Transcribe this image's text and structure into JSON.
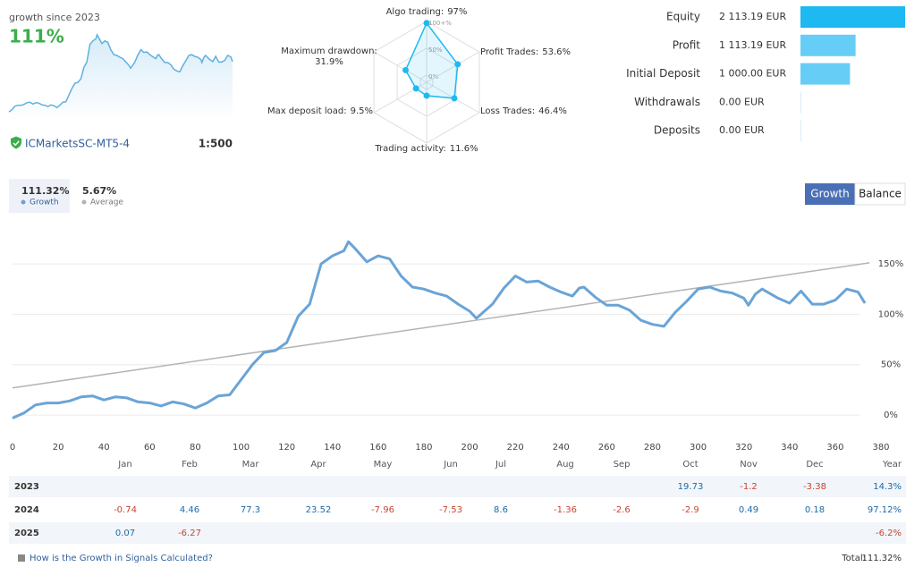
{
  "header": {
    "title": "growth since 2023",
    "growth": "111%",
    "account": "ICMarketsSC-MT5-4",
    "leverage": "1:500"
  },
  "radar": {
    "ticks": [
      {
        "value": 0,
        "label": "0%"
      },
      {
        "value": 50,
        "label": "50%"
      },
      {
        "value": 100,
        "label": "100+%"
      }
    ],
    "axes": [
      {
        "name": "Algo trading:",
        "value": 97,
        "value_label": "97%"
      },
      {
        "name": "Profit Trades:",
        "value": 53.6,
        "value_label": "53.6%"
      },
      {
        "name": "Loss Trades:",
        "value": 46.4,
        "value_label": "46.4%"
      },
      {
        "name": "Trading activity:",
        "value": 11.6,
        "value_label": "11.6%"
      },
      {
        "name": "Max deposit load:",
        "value": 9.5,
        "value_label": "9.5%"
      },
      {
        "name": "Maximum drawdown:",
        "value": 31.9,
        "value_label": "31.9%"
      }
    ]
  },
  "stats": {
    "items": [
      {
        "label": "Equity",
        "value": 2113.19,
        "value_label": "2 113.19 EUR",
        "color": "#1db9f0"
      },
      {
        "label": "Profit",
        "value": 1113.19,
        "value_label": "1 113.19 EUR",
        "color": "#66cdf6"
      },
      {
        "label": "Initial Deposit",
        "value": 1000,
        "value_label": "1 000.00 EUR",
        "color": "#66cdf6"
      },
      {
        "label": "Withdrawals",
        "value": 0,
        "value_label": "0.00 EUR",
        "color": "#66cdf6"
      },
      {
        "label": "Deposits",
        "value": 0,
        "value_label": "0.00 EUR",
        "color": "#66cdf6"
      }
    ]
  },
  "summary": {
    "growth_value": "111.32%",
    "average_value": "5.67%"
  },
  "tabs": [
    "Growth",
    "Balance"
  ],
  "chart_data": {
    "type": "line",
    "xlim": [
      0,
      380
    ],
    "ylim": [
      -23,
      190
    ],
    "xticks": [
      0,
      20,
      40,
      60,
      80,
      100,
      120,
      140,
      160,
      180,
      200,
      220,
      240,
      260,
      280,
      300,
      320,
      340,
      360,
      380
    ],
    "yticks": [
      {
        "value": 0,
        "label": "0%"
      },
      {
        "value": 50,
        "label": "50%"
      },
      {
        "value": 100,
        "label": "100%"
      },
      {
        "value": 150,
        "label": "150%"
      }
    ],
    "grid": true,
    "series": [
      {
        "name": "Growth",
        "color": "#6aa4d6",
        "x": [
          0,
          5,
          10,
          15,
          20,
          25,
          30,
          35,
          40,
          45,
          50,
          55,
          60,
          65,
          70,
          75,
          80,
          85,
          90,
          95,
          100,
          105,
          110,
          115,
          120,
          125,
          130,
          135,
          140,
          145,
          147,
          150,
          155,
          160,
          165,
          170,
          175,
          180,
          185,
          190,
          195,
          200,
          203,
          210,
          215,
          220,
          225,
          230,
          235,
          240,
          245,
          248,
          250,
          255,
          260,
          265,
          270,
          275,
          280,
          285,
          290,
          295,
          300,
          305,
          310,
          315,
          320,
          322,
          325,
          328,
          335,
          340,
          345,
          350,
          355,
          360,
          365,
          370,
          373
        ],
        "values": [
          -3,
          2,
          10,
          12,
          12,
          14,
          18,
          19,
          15,
          18,
          17,
          13,
          12,
          9,
          13,
          11,
          7,
          12,
          19,
          20,
          35,
          50,
          62,
          64,
          72,
          98,
          110,
          150,
          158,
          163,
          172,
          165,
          152,
          158,
          155,
          138,
          127,
          125,
          121,
          118,
          110,
          103,
          96,
          110,
          126,
          138,
          132,
          133,
          127,
          122,
          118,
          126,
          127,
          117,
          109,
          109,
          104,
          94,
          90,
          88,
          102,
          113,
          125,
          127,
          123,
          121,
          116,
          109,
          120,
          125,
          116,
          111,
          123,
          110,
          110,
          114,
          125,
          122,
          111
        ]
      },
      {
        "name": "Average",
        "color": "#b4b4b4",
        "x": [
          0,
          375
        ],
        "values": [
          27,
          151
        ]
      }
    ]
  },
  "table": {
    "columns": [
      "Jan",
      "Feb",
      "Mar",
      "Apr",
      "May",
      "Jun",
      "Jul",
      "Aug",
      "Sep",
      "Oct",
      "Nov",
      "Dec",
      "Year"
    ],
    "rows": [
      {
        "year": "2023",
        "cells": [
          null,
          null,
          null,
          null,
          null,
          null,
          null,
          null,
          null,
          19.73,
          -1.2,
          -3.38,
          "14.3%"
        ]
      },
      {
        "year": "2024",
        "cells": [
          -0.74,
          4.46,
          77.3,
          23.52,
          -7.96,
          -7.53,
          8.6,
          -1.36,
          -2.6,
          -2.9,
          0.49,
          0.18,
          "97.12%"
        ]
      },
      {
        "year": "2025",
        "cells": [
          0.07,
          -6.27,
          null,
          null,
          null,
          null,
          null,
          null,
          null,
          null,
          null,
          null,
          "-6.2%"
        ]
      }
    ]
  },
  "footer": {
    "link": "How is the Growth in Signals Calculated?",
    "total_label": "Total:",
    "total_value": "111.32%"
  }
}
